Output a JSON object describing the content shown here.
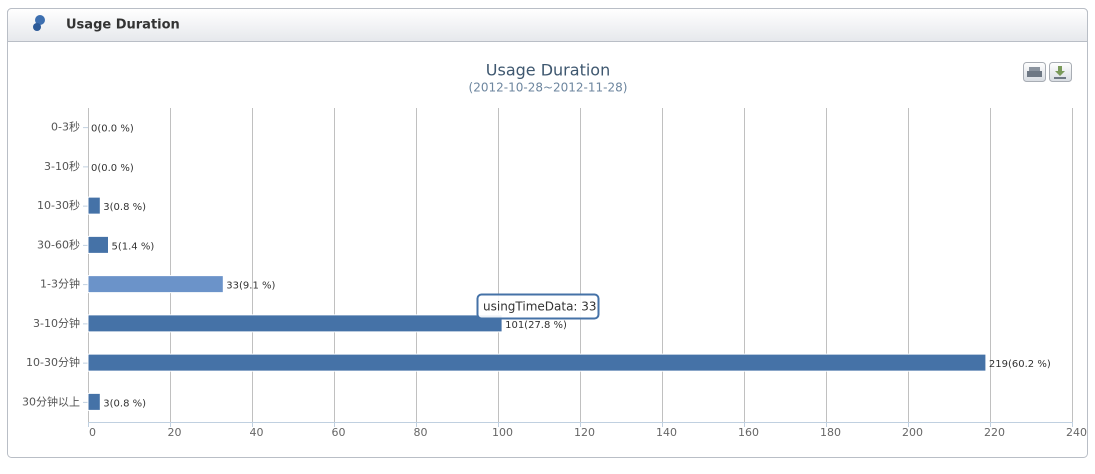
{
  "panel_title": "Usage Duration",
  "chart_data": {
    "type": "bar",
    "orientation": "horizontal",
    "title": "Usage Duration",
    "subtitle": "(2012-10-28~2012-11-28)",
    "categories": [
      "0-3秒",
      "3-10秒",
      "10-30秒",
      "30-60秒",
      "1-3分钟",
      "3-10分钟",
      "10-30分钟",
      "30分钟以上"
    ],
    "values": [
      0,
      0,
      3,
      5,
      33,
      101,
      219,
      3
    ],
    "value_labels": [
      "0(0.0 %)",
      "0(0.0 %)",
      "3(0.8 %)",
      "5(1.4 %)",
      "33(9.1 %)",
      "101(27.8 %)",
      "219(60.2 %)",
      "3(0.8 %)"
    ],
    "colors": [
      "#4572a7",
      "#4572a7",
      "#4572a7",
      "#4572a7",
      "#6b93c9",
      "#4572a7",
      "#4572a7",
      "#4572a7"
    ],
    "xlim": [
      0,
      240
    ],
    "xticks": [
      0,
      20,
      40,
      60,
      80,
      100,
      120,
      140,
      160,
      180,
      200,
      220,
      240
    ],
    "grid": true,
    "tooltip": "usingTimeData: 33"
  }
}
